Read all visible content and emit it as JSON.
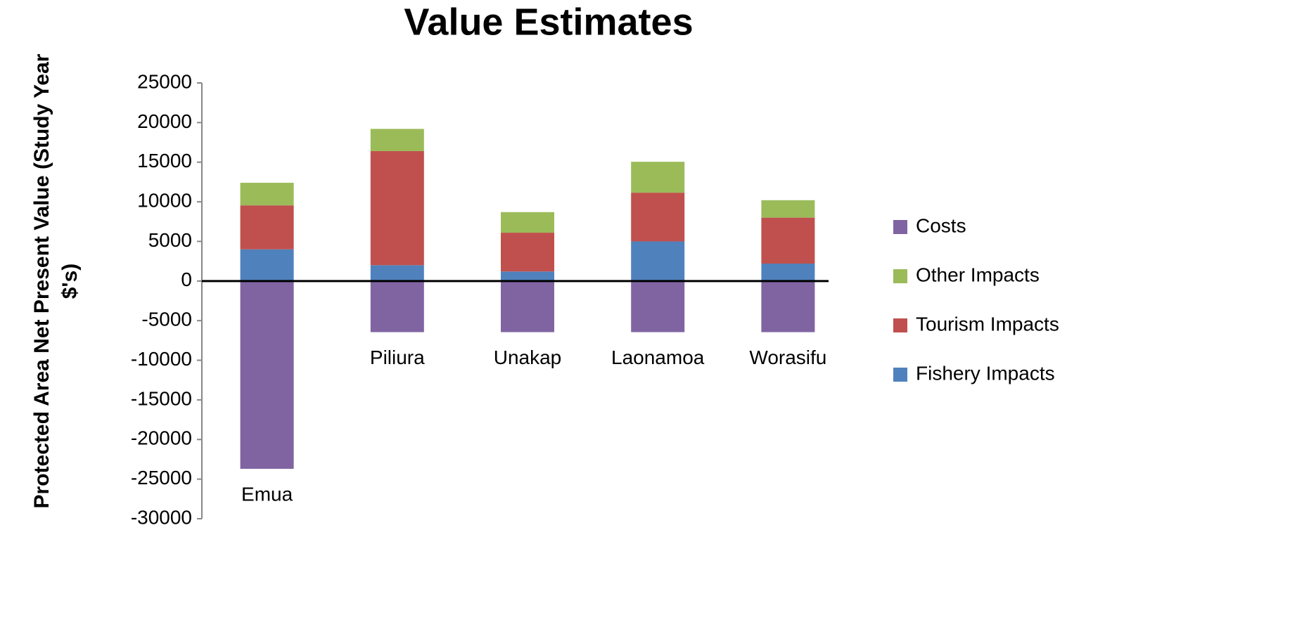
{
  "chart_data": {
    "type": "stacked_bar",
    "title": "Value Estimates",
    "y_label": "Protected Area  Net Present Value (Study Year $'s)",
    "categories": [
      "Emua",
      "Piliura",
      "Unakap",
      "Laonamoa",
      "Worasifu"
    ],
    "series": [
      {
        "name": "Fishery Impacts",
        "color": "#4f81bd",
        "values": [
          4000,
          2000,
          1200,
          5000,
          2200
        ]
      },
      {
        "name": "Tourism Impacts",
        "color": "#c0504d",
        "values": [
          5550,
          14400,
          4900,
          6150,
          5800
        ]
      },
      {
        "name": "Other Impacts",
        "color": "#9bbb59",
        "values": [
          2850,
          2800,
          2600,
          3900,
          2200
        ]
      },
      {
        "name": "Costs",
        "color": "#8064a2",
        "values": [
          -23700,
          -6450,
          -6450,
          -6450,
          -6450
        ]
      }
    ],
    "ylim": [
      -30000,
      25000
    ],
    "yticks": [
      -30000,
      -25000,
      -20000,
      -15000,
      -10000,
      -5000,
      0,
      5000,
      10000,
      15000,
      20000,
      25000
    ],
    "legend": "right"
  }
}
